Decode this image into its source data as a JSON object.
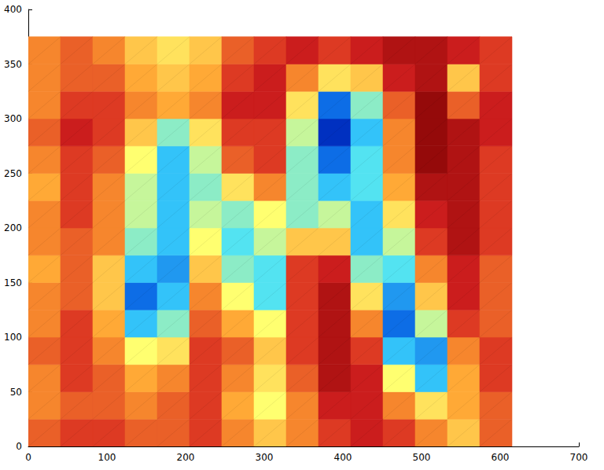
{
  "chart_data": {
    "type": "heatmap",
    "xlim": [
      0,
      700
    ],
    "xticks": [
      0,
      100,
      200,
      300,
      400,
      500,
      600,
      700
    ],
    "ylim": [
      0,
      400
    ],
    "yticks": [
      0,
      50,
      100,
      150,
      200,
      250,
      300,
      350,
      400
    ],
    "grid": false,
    "x_edges": [
      0,
      41,
      82,
      123,
      164,
      205,
      246,
      287,
      328,
      369,
      410,
      451,
      492,
      533,
      574,
      615
    ],
    "y_edges": [
      0,
      25,
      50,
      75,
      100,
      125,
      150,
      175,
      200,
      225,
      250,
      275,
      300,
      325,
      350,
      375
    ],
    "color_range": [
      0,
      10
    ],
    "cells": [
      [
        7.5,
        8,
        8,
        7.5,
        7.5,
        8,
        7,
        6,
        7,
        8,
        8.5,
        8,
        7,
        6,
        7.5
      ],
      [
        7,
        7.5,
        7.5,
        7,
        7.5,
        8,
        6.5,
        5,
        7,
        8.5,
        8.5,
        7,
        5.5,
        6.5,
        7.5
      ],
      [
        7,
        8,
        7.5,
        6.5,
        7,
        8,
        7,
        5.5,
        7.5,
        9,
        8.5,
        5,
        3,
        6.5,
        8
      ],
      [
        7.5,
        8,
        7,
        5,
        5.5,
        8,
        7.5,
        6,
        8,
        9,
        8,
        3,
        2.5,
        7,
        8
      ],
      [
        7,
        8,
        6.5,
        3,
        4,
        7.5,
        6.5,
        5,
        8,
        9,
        7,
        2,
        4.5,
        8,
        7.5
      ],
      [
        7,
        7.5,
        6,
        2,
        3,
        7,
        5,
        3.5,
        8,
        9,
        5.5,
        2.5,
        6,
        8.5,
        7.5
      ],
      [
        6.5,
        7.5,
        6,
        3,
        2.5,
        6,
        4,
        3.5,
        8,
        8.5,
        4,
        3.5,
        7,
        8.5,
        7.5
      ],
      [
        7,
        7.5,
        7,
        4,
        3,
        5,
        3.5,
        4.5,
        6,
        6,
        3,
        4.5,
        8,
        9,
        8
      ],
      [
        7,
        8,
        7,
        4.5,
        3,
        4.5,
        4,
        5,
        4,
        4.5,
        3,
        5.5,
        8.5,
        9,
        8
      ],
      [
        6.5,
        8,
        7,
        4.5,
        3,
        4,
        5.5,
        7,
        4,
        3,
        3.5,
        6.5,
        9,
        9,
        8
      ],
      [
        7,
        8,
        7.5,
        5,
        3,
        4.5,
        7.5,
        8,
        4,
        2,
        3.5,
        7,
        9.5,
        9,
        8
      ],
      [
        7.5,
        8.5,
        8,
        6,
        4,
        5.5,
        8,
        8,
        4.5,
        1,
        3,
        7,
        9.5,
        9,
        8.5
      ],
      [
        7,
        8,
        8,
        7,
        6.5,
        7,
        8.5,
        8.5,
        5.5,
        2,
        4,
        7.5,
        9.5,
        7.5,
        8.5
      ],
      [
        7,
        7.5,
        7.5,
        6.5,
        6,
        6.5,
        8,
        8.5,
        7,
        5.5,
        6,
        8.5,
        9,
        6,
        8
      ],
      [
        7,
        7.5,
        7,
        6,
        5.5,
        6,
        7.5,
        8,
        8.5,
        8,
        8.5,
        9,
        9,
        8.5,
        8
      ]
    ]
  }
}
